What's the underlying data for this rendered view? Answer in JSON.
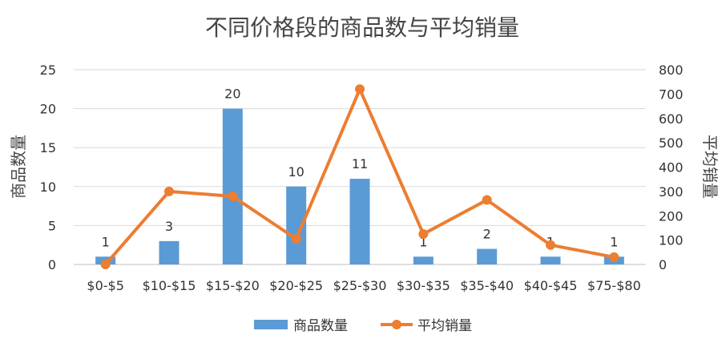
{
  "chart_data": {
    "type": "bar",
    "title": "不同价格段的商品数与平均销量",
    "categories": [
      "$0-$5",
      "$10-$15",
      "$15-$20",
      "$20-$25",
      "$25-$30",
      "$30-$35",
      "$35-$40",
      "$40-$45",
      "$75-$80"
    ],
    "series": [
      {
        "name": "商品数量",
        "type": "bar",
        "axis": "left",
        "color": "#5b9bd5",
        "values": [
          1,
          3,
          20,
          10,
          11,
          1,
          2,
          1,
          1
        ],
        "data_labels": [
          "1",
          "3",
          "20",
          "10",
          "11",
          "1",
          "2",
          "1",
          "1"
        ]
      },
      {
        "name": "平均销量",
        "type": "line",
        "axis": "right",
        "color": "#ed7d31",
        "values": [
          0,
          300,
          280,
          105,
          720,
          125,
          265,
          80,
          30
        ]
      }
    ],
    "y_left": {
      "label": "商品数量",
      "ylim": [
        0,
        25
      ],
      "ticks": [
        "0",
        "5",
        "10",
        "15",
        "20",
        "25"
      ]
    },
    "y_right": {
      "label": "平均销量",
      "ylim": [
        0,
        800
      ],
      "ticks": [
        "0",
        "100",
        "200",
        "300",
        "400",
        "500",
        "600",
        "700",
        "800"
      ]
    },
    "grid": true,
    "legend": {
      "position": "bottom",
      "entries": [
        "商品数量",
        "平均销量"
      ]
    }
  }
}
